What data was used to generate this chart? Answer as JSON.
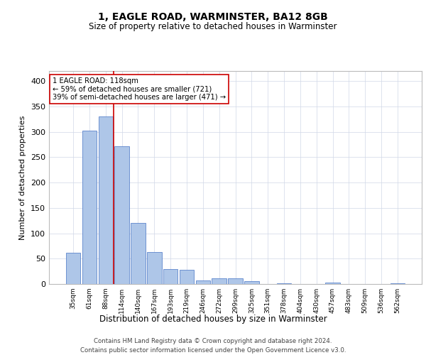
{
  "title1": "1, EAGLE ROAD, WARMINSTER, BA12 8GB",
  "title2": "Size of property relative to detached houses in Warminster",
  "xlabel": "Distribution of detached houses by size in Warminster",
  "ylabel": "Number of detached properties",
  "categories": [
    "35sqm",
    "61sqm",
    "88sqm",
    "114sqm",
    "140sqm",
    "167sqm",
    "193sqm",
    "219sqm",
    "246sqm",
    "272sqm",
    "299sqm",
    "325sqm",
    "351sqm",
    "378sqm",
    "404sqm",
    "430sqm",
    "457sqm",
    "483sqm",
    "509sqm",
    "536sqm",
    "562sqm"
  ],
  "bar_values": [
    62,
    302,
    331,
    271,
    120,
    63,
    29,
    28,
    7,
    11,
    11,
    5,
    0,
    2,
    0,
    0,
    3,
    0,
    0,
    0,
    2
  ],
  "bar_color": "#aec6e8",
  "bar_edge_color": "#4472c4",
  "vline_color": "#cc0000",
  "annotation_text": "1 EAGLE ROAD: 118sqm\n← 59% of detached houses are smaller (721)\n39% of semi-detached houses are larger (471) →",
  "annotation_box_color": "#ffffff",
  "annotation_box_edge": "#cc0000",
  "grid_color": "#d0d8e8",
  "background_color": "#ffffff",
  "ylim": [
    0,
    420
  ],
  "yticks": [
    0,
    50,
    100,
    150,
    200,
    250,
    300,
    350,
    400
  ],
  "footer1": "Contains HM Land Registry data © Crown copyright and database right 2024.",
  "footer2": "Contains public sector information licensed under the Open Government Licence v3.0."
}
